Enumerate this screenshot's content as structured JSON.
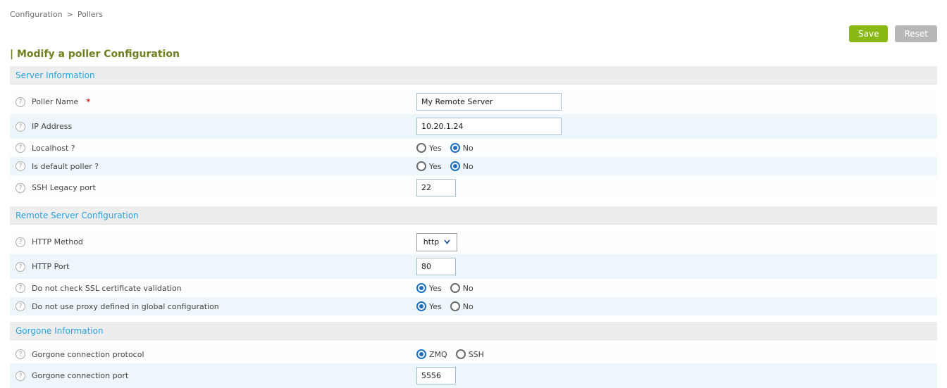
{
  "breadcrumb": {
    "items": [
      "Configuration",
      "Pollers"
    ],
    "separator": ">"
  },
  "toolbar": {
    "save_label": "Save",
    "reset_label": "Reset"
  },
  "page": {
    "title": "| Modify a poller Configuration"
  },
  "help_icon_glyph": "?",
  "colors": {
    "save_green": "#88b917",
    "reset_gray": "#b7b7b7",
    "section_blue": "#29a3dc",
    "title_olive": "#6e801f",
    "radio_blue": "#1f6fc0",
    "required_red": "#e01b1b"
  },
  "sections": [
    {
      "title": "Server Information",
      "rows": [
        {
          "name": "poller-name",
          "label": "Poller Name",
          "required": true,
          "field": {
            "type": "text",
            "value": "My Remote Server",
            "size": "wide"
          }
        },
        {
          "name": "ip-address",
          "label": "IP Address",
          "field": {
            "type": "text",
            "value": "10.20.1.24",
            "size": "wide"
          }
        },
        {
          "name": "localhost",
          "label": "Localhost ?",
          "field": {
            "type": "radio",
            "options": [
              "Yes",
              "No"
            ],
            "selected": "No"
          }
        },
        {
          "name": "is-default-poller",
          "label": "Is default poller ?",
          "field": {
            "type": "radio",
            "options": [
              "Yes",
              "No"
            ],
            "selected": "No"
          }
        },
        {
          "name": "ssh-legacy-port",
          "label": "SSH Legacy port",
          "field": {
            "type": "text",
            "value": "22",
            "size": "small"
          }
        }
      ]
    },
    {
      "title": "Remote Server Configuration",
      "rows": [
        {
          "name": "http-method",
          "label": "HTTP Method",
          "field": {
            "type": "select",
            "value": "http"
          }
        },
        {
          "name": "http-port",
          "label": "HTTP Port",
          "field": {
            "type": "text",
            "value": "80",
            "size": "small"
          }
        },
        {
          "name": "ssl-certificate-validation",
          "label": "Do not check SSL certificate validation",
          "field": {
            "type": "radio",
            "options": [
              "Yes",
              "No"
            ],
            "selected": "Yes"
          }
        },
        {
          "name": "no-proxy",
          "label": "Do not use proxy defined in global configuration",
          "field": {
            "type": "radio",
            "options": [
              "Yes",
              "No"
            ],
            "selected": "Yes"
          }
        }
      ]
    },
    {
      "title": "Gorgone Information",
      "rows": [
        {
          "name": "gorgone-connection-protocol",
          "label": "Gorgone connection protocol",
          "field": {
            "type": "radio",
            "options": [
              "ZMQ",
              "SSH"
            ],
            "selected": "ZMQ"
          }
        },
        {
          "name": "gorgone-connection-port",
          "label": "Gorgone connection port",
          "field": {
            "type": "text",
            "value": "5556",
            "size": "small"
          }
        }
      ]
    }
  ]
}
